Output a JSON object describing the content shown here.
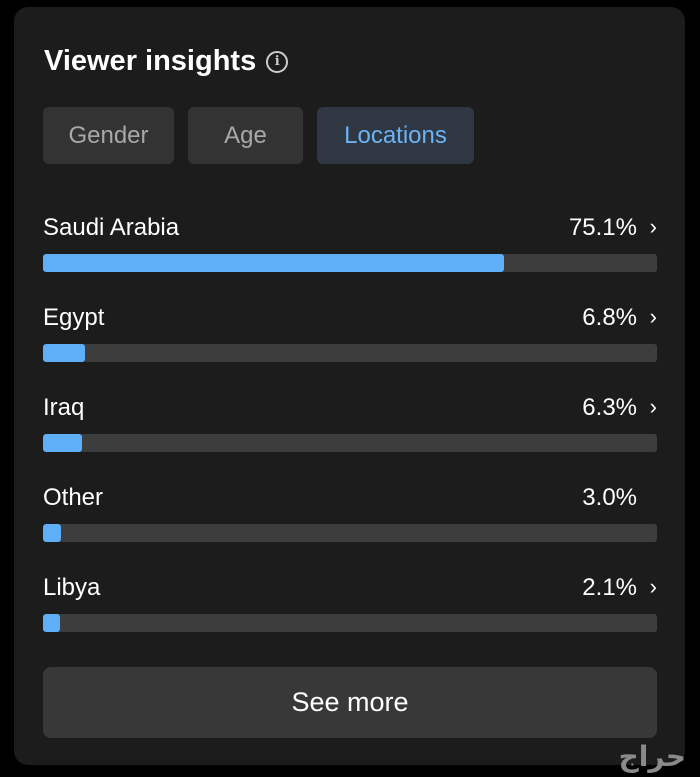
{
  "header": {
    "title": "Viewer insights",
    "info_icon": "info-circle-icon"
  },
  "tabs": [
    {
      "label": "Gender",
      "active": false
    },
    {
      "label": "Age",
      "active": false
    },
    {
      "label": "Locations",
      "active": true
    }
  ],
  "locations": [
    {
      "name": "Saudi Arabia",
      "percent_label": "75.1%",
      "percent": 75.1,
      "has_chevron": true
    },
    {
      "name": "Egypt",
      "percent_label": "6.8%",
      "percent": 6.8,
      "has_chevron": true
    },
    {
      "name": "Iraq",
      "percent_label": "6.3%",
      "percent": 6.3,
      "has_chevron": true
    },
    {
      "name": "Other",
      "percent_label": "3.0%",
      "percent": 3.0,
      "has_chevron": false
    },
    {
      "name": "Libya",
      "percent_label": "2.1%",
      "percent": 2.1,
      "has_chevron": true
    }
  ],
  "see_more_label": "See more",
  "watermark": "حراج",
  "colors": {
    "accent": "#5eaef8",
    "track": "#3d3d3d",
    "card": "#1c1c1c"
  }
}
